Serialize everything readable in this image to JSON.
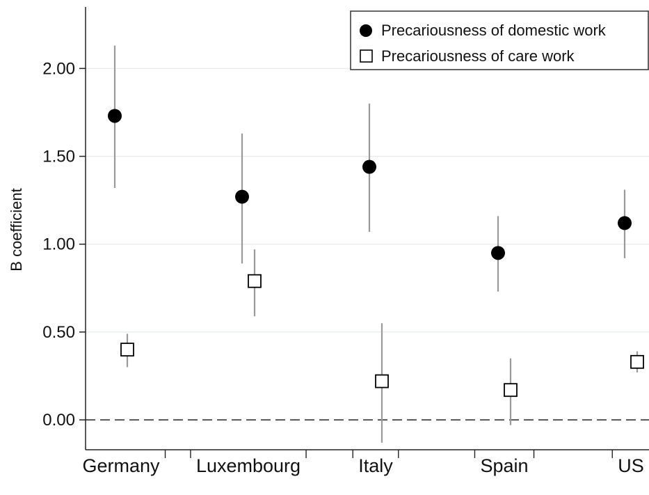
{
  "chart_data": {
    "type": "scatter",
    "title": "",
    "xlabel": "",
    "ylabel": "B coefficient",
    "categories": [
      "Germany",
      "Luxembourg",
      "Italy",
      "Spain",
      "US"
    ],
    "ylim": [
      -0.17,
      2.35
    ],
    "yticks": [
      0,
      0.5,
      1,
      1.5,
      2
    ],
    "ytick_labels": [
      "0.00",
      "0.50",
      "1.00",
      "1.50",
      "2.00"
    ],
    "reference_line": {
      "y": 0,
      "style": "dashed"
    },
    "grid": "horizontal",
    "legend_position": "top-right",
    "series": [
      {
        "name": "Precariousness of domestic work",
        "marker": "filled-circle",
        "color": "#000000",
        "values": [
          1.73,
          1.27,
          1.44,
          0.95,
          1.12
        ],
        "ci_low": [
          1.32,
          0.89,
          1.07,
          0.73,
          0.92
        ],
        "ci_high": [
          2.13,
          1.63,
          1.8,
          1.16,
          1.31
        ]
      },
      {
        "name": "Precariousness of care work",
        "marker": "hollow-square",
        "color": "#000000",
        "values": [
          0.4,
          0.79,
          0.22,
          0.17,
          0.33
        ],
        "ci_low": [
          0.3,
          0.59,
          -0.13,
          -0.03,
          0.27
        ],
        "ci_high": [
          0.49,
          0.97,
          0.55,
          0.35,
          0.39
        ]
      }
    ]
  }
}
